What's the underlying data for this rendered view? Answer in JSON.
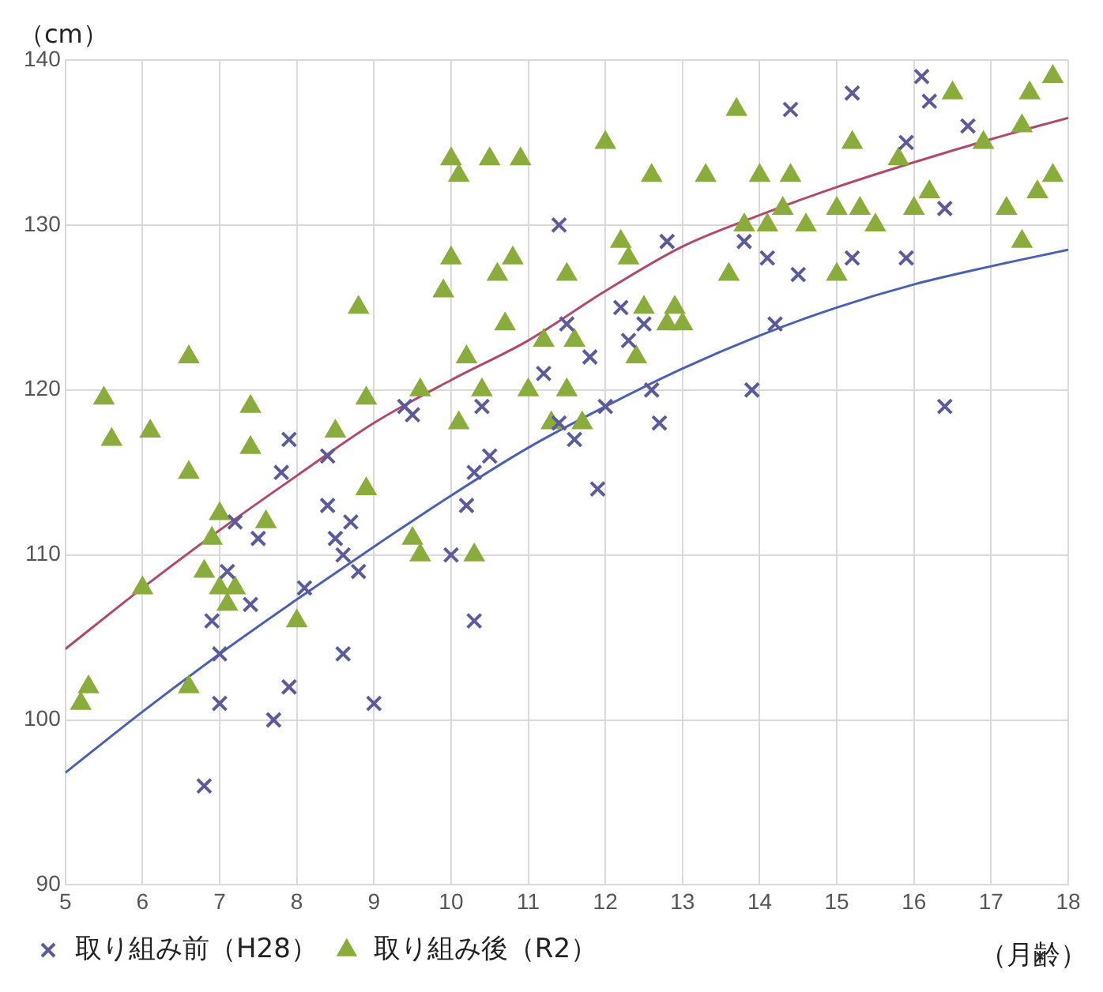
{
  "chart_data": {
    "type": "scatter",
    "xlabel": "（月齢）",
    "ylabel": "（cm）",
    "xlim": [
      5,
      18
    ],
    "xticks": [
      5,
      6,
      7,
      8,
      9,
      10,
      11,
      12,
      13,
      14,
      15,
      16,
      17,
      18
    ],
    "ylim": [
      90,
      140
    ],
    "yticks": [
      90,
      100,
      110,
      120,
      130,
      140
    ],
    "grid": true,
    "legend": "bottom",
    "series": [
      {
        "name": "取り組み前（H28）",
        "color": "#5b5b9b",
        "marker": "cross",
        "x": [
          6.8,
          6.9,
          7.0,
          7.0,
          7.1,
          7.2,
          7.4,
          7.5,
          7.7,
          7.8,
          7.9,
          7.9,
          8.1,
          8.4,
          8.4,
          8.5,
          8.6,
          8.6,
          8.7,
          8.8,
          9.0,
          9.4,
          9.5,
          10.0,
          10.2,
          10.3,
          10.3,
          10.4,
          10.5,
          11.2,
          11.4,
          11.4,
          11.5,
          11.6,
          11.8,
          11.9,
          12.0,
          12.2,
          12.3,
          12.5,
          12.6,
          12.7,
          12.8,
          13.8,
          13.9,
          14.1,
          14.2,
          14.4,
          14.5,
          15.2,
          15.2,
          15.9,
          15.9,
          16.1,
          16.2,
          16.4,
          16.4,
          16.7
        ],
        "values": [
          96,
          106,
          101,
          104,
          109,
          112,
          107,
          111,
          100,
          115,
          117,
          102,
          108,
          116,
          113,
          111,
          104,
          110,
          112,
          109,
          101,
          119,
          118.5,
          110,
          113,
          106,
          115,
          119,
          116,
          121,
          130,
          118,
          124,
          117,
          122,
          114,
          119,
          125,
          123,
          124,
          120,
          118,
          129,
          129,
          120,
          128,
          124,
          137,
          127,
          138,
          128,
          128,
          135,
          139,
          137.5,
          131,
          119,
          136
        ]
      },
      {
        "name": "取り組み後（R2）",
        "color": "#8aac3c",
        "marker": "triangle",
        "x": [
          5.2,
          5.3,
          5.5,
          5.6,
          6.0,
          6.1,
          6.6,
          6.6,
          6.6,
          6.8,
          6.9,
          7.0,
          7.0,
          7.1,
          7.2,
          7.4,
          7.4,
          7.6,
          8.0,
          8.5,
          8.8,
          8.9,
          8.9,
          9.5,
          9.6,
          9.6,
          9.9,
          10.0,
          10.0,
          10.1,
          10.1,
          10.2,
          10.3,
          10.4,
          10.5,
          10.6,
          10.7,
          10.8,
          10.9,
          11.0,
          11.2,
          11.3,
          11.5,
          11.5,
          11.6,
          11.7,
          12.0,
          12.2,
          12.3,
          12.4,
          12.5,
          12.6,
          12.8,
          12.9,
          13.0,
          13.3,
          13.6,
          13.7,
          13.8,
          14.0,
          14.1,
          14.3,
          14.4,
          14.6,
          15.0,
          15.0,
          15.2,
          15.3,
          15.5,
          15.8,
          16.0,
          16.2,
          16.5,
          16.9,
          17.2,
          17.4,
          17.4,
          17.5,
          17.6,
          17.8,
          17.8
        ],
        "values": [
          101,
          102,
          119.5,
          117,
          108,
          117.5,
          102,
          122,
          115,
          109,
          111,
          108,
          112.5,
          107,
          108,
          116.5,
          119,
          112,
          106,
          117.5,
          125,
          114,
          119.5,
          111,
          110,
          120,
          126,
          128,
          134,
          118,
          133,
          122,
          110,
          120,
          134,
          127,
          124,
          128,
          134,
          120,
          123,
          118,
          127,
          120,
          123,
          118,
          135,
          129,
          128,
          122,
          125,
          133,
          124,
          125,
          124,
          133,
          127,
          137,
          130,
          133,
          130,
          131,
          133,
          130,
          131,
          127,
          135,
          131,
          130,
          134,
          131,
          132,
          138,
          135,
          131,
          129,
          136,
          138,
          132,
          133,
          139
        ]
      },
      {
        "type": "line",
        "color": "#4a60b0",
        "marker": "none",
        "x": [
          5,
          6,
          7,
          8,
          9,
          10,
          11,
          12,
          13,
          14,
          15,
          16,
          17,
          18
        ],
        "values": [
          96.8,
          100.5,
          104,
          107.3,
          110.5,
          113.6,
          116.5,
          119,
          121.3,
          123.3,
          125,
          126.4,
          127.5,
          128.5
        ]
      },
      {
        "type": "line",
        "color": "#b04a6a",
        "marker": "none",
        "x": [
          5,
          6,
          7,
          8,
          9,
          10,
          11,
          12,
          13,
          14,
          15,
          16,
          17,
          18
        ],
        "values": [
          104.3,
          108,
          111.5,
          114.8,
          118,
          120.6,
          123,
          126,
          128.7,
          130.6,
          132.3,
          133.8,
          135.2,
          136.5
        ]
      }
    ]
  }
}
